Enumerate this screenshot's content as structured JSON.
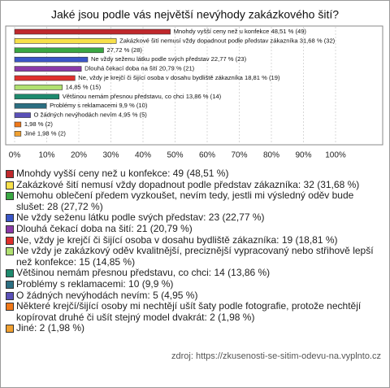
{
  "chart_data": {
    "type": "bar",
    "orientation": "horizontal",
    "title": "Jaké jsou podle vás největší nevýhody zakázkového šití?",
    "categories": [
      "Mnohdy vyšší ceny než u konfekce: 49 (48,51 %)",
      "Zakázkové šití nemusí vždy dopadnout podle představ zákazníka: 32 (31,68 %)",
      "Nemohu oblečení předem vyzkoušet, nevím tedy, jestli mi výsledný oděv bude slušet: 28 (27,72 %)",
      "Ne vždy seženu látku podle svých představ: 23 (22,77 %)",
      "Dlouhá čekací doba na šití: 21 (20,79 %)",
      "Ne, vždy je krejčí či šijící osoba v dosahu bydliště zákazníka: 19 (18,81 %)",
      "Ne vždy je zakázkový oděv kvalitnější, preciznější vypracovaný nebo střihově lepší než konfekce: 15 (14,85 %)",
      "Většinou nemám přesnou představu, co chci: 14 (13,86 %)",
      "Problémy s reklamacemi: 10 (9,9 %)",
      "O žádných nevýhodách nevím: 5 (4,95 %)",
      "Některé krejčí/šijící osoby mi nechtějí ušít šaty podle fotografie, protože nechtějí kopírovat druhé či ušít stejný model dvakrát: 2 (1,98 %)",
      "Jiné: 2 (1,98 %)"
    ],
    "values": [
      48.51,
      31.68,
      27.72,
      22.77,
      20.79,
      18.81,
      14.85,
      13.86,
      9.9,
      4.95,
      1.98,
      1.98
    ],
    "value_labels": [
      "Mnohdy vyšší ceny než u konfekce 48,51 % (49)",
      "Zakázkové šití nemusí vždy dopadnout podle představ zákazníka 31,68 % (32)",
      "27,72 % (28)",
      "Ne vždy seženu látku podle svých představ 22,77 % (23)",
      "Dlouhá čekací doba na šití 20,79 % (21)",
      "Ne, vždy je krejčí či šijící osoba v dosahu bydliště zákazníka 18,81 % (19)",
      "14,85 % (15)",
      "Většinou nemám přesnou představu, co chci 13,86 % (14)",
      "Problémy s reklamacemi 9,9 % (10)",
      "O žádných nevýhodách nevím 4,95 % (5)",
      "1,98 % (2)",
      "Jiné 1,98 % (2)"
    ],
    "colors": [
      "#c0282c",
      "#f7e04a",
      "#3aa843",
      "#3a56c8",
      "#8a3aa8",
      "#e0302c",
      "#b0e070",
      "#1d8a6e",
      "#2b6f82",
      "#5a50b8",
      "#f07818",
      "#f0a030"
    ],
    "xlim": [
      0,
      100
    ],
    "xticks": [
      {
        "value": 0,
        "label": "0%"
      },
      {
        "value": 10,
        "label": "10%"
      },
      {
        "value": 20,
        "label": "20%"
      },
      {
        "value": 30,
        "label": "30%"
      },
      {
        "value": 40,
        "label": "40%"
      },
      {
        "value": 50,
        "label": "50%"
      },
      {
        "value": 60,
        "label": "60%"
      },
      {
        "value": 70,
        "label": "70%"
      },
      {
        "value": 80,
        "label": "80%"
      },
      {
        "value": 90,
        "label": "90%"
      },
      {
        "value": 100,
        "label": "100%"
      }
    ],
    "grid": true
  },
  "source": "zdroj: https://zkusenosti-se-sitim-odevu-na.vyplnto.cz"
}
